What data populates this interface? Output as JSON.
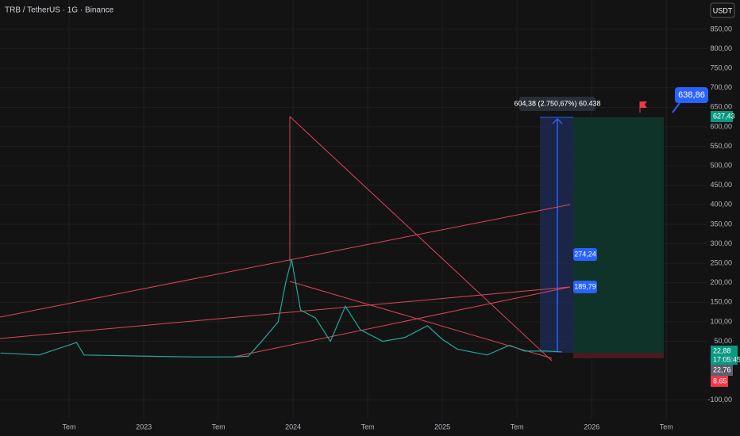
{
  "chart_data": {
    "type": "line",
    "title": "TRB / TetherUS · 1G · Binance",
    "currency": "USDT",
    "x": [
      2022.04,
      2022.3,
      2022.55,
      2022.6,
      2023.0,
      2023.3,
      2023.6,
      2023.7,
      2023.79,
      2023.9,
      2023.95,
      2023.99,
      2024.05,
      2024.15,
      2024.25,
      2024.35,
      2024.45,
      2024.6,
      2024.75,
      2024.9,
      2025.0,
      2025.1,
      2025.3,
      2025.45,
      2025.55,
      2025.7,
      2025.8
    ],
    "series": [
      {
        "name": "TRB/USDT",
        "color": "#26a69a",
        "values": [
          20,
          15,
          47,
          15,
          12,
          10,
          10,
          12,
          50,
          100,
          200,
          260,
          130,
          110,
          50,
          140,
          80,
          50,
          60,
          90,
          55,
          30,
          15,
          40,
          25,
          25,
          22.88
        ]
      }
    ],
    "xlim": [
      2022.037,
      2026.77
    ],
    "xticks": [
      {
        "value": 2022.5,
        "label": "Tem"
      },
      2023,
      {
        "value": 2023.5,
        "label": "Tem"
      },
      2024,
      {
        "value": 2024.5,
        "label": "Tem"
      },
      2025,
      {
        "value": 2025.5,
        "label": "Tem"
      },
      2026,
      {
        "value": 2026.5,
        "label": "Tem"
      }
    ],
    "ylim": [
      -148,
      925
    ],
    "yticks": [
      {
        "value": -100,
        "label": "-100,00"
      },
      {
        "value": 50,
        "label": "50,00"
      },
      {
        "value": 100,
        "label": "100,00"
      },
      {
        "value": 150,
        "label": "150,00"
      },
      {
        "value": 200,
        "label": "200,00"
      },
      {
        "value": 250,
        "label": "250,00"
      },
      {
        "value": 300,
        "label": "300,00"
      },
      {
        "value": 350,
        "label": "350,00"
      },
      {
        "value": 400,
        "label": "400,00"
      },
      {
        "value": 450,
        "label": "450,00"
      },
      {
        "value": 500,
        "label": "500,00"
      },
      {
        "value": 550,
        "label": "550,00"
      },
      {
        "value": 600,
        "label": "600,00"
      },
      {
        "value": 650,
        "label": "650,00"
      },
      {
        "value": 700,
        "label": "700,00"
      },
      {
        "value": 750,
        "label": "750,00"
      },
      {
        "value": 800,
        "label": "800,00"
      },
      {
        "value": 850,
        "label": "850,00"
      }
    ],
    "grid": true,
    "annotations": {
      "measure": "604,38 (2.750,67%) 60.438",
      "level_a": "274,24",
      "level_b": "189,79",
      "target": "638,86",
      "target_price": "627,43",
      "last_price": "22,88",
      "countdown": "17:05:45",
      "entry_price": "22,76",
      "stop_price": "8,65"
    }
  }
}
